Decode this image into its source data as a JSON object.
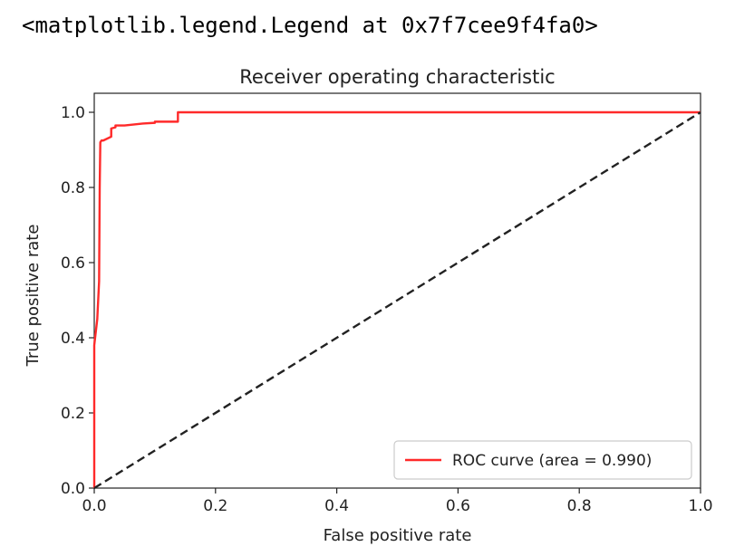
{
  "output": {
    "repr_text": "<matplotlib.legend.Legend at 0x7f7cee9f4fa0>"
  },
  "chart_data": {
    "type": "line",
    "title": "Receiver operating characteristic",
    "xlabel": "False positive rate",
    "ylabel": "True positive rate",
    "xlim": [
      0.0,
      1.0
    ],
    "ylim": [
      0.0,
      1.0
    ],
    "xticks": [
      0.0,
      0.2,
      0.4,
      0.6,
      0.8,
      1.0
    ],
    "yticks": [
      0.0,
      0.2,
      0.4,
      0.6,
      0.8,
      1.0
    ],
    "tick_labels_x": [
      "0.0",
      "0.2",
      "0.4",
      "0.6",
      "0.8",
      "1.0"
    ],
    "tick_labels_y": [
      "0.0",
      "0.2",
      "0.4",
      "0.6",
      "0.8",
      "1.0"
    ],
    "grid": false,
    "legend_position": "lower-right",
    "series": [
      {
        "name": "ROC curve (area = 0.990)",
        "color": "#ff2a2a",
        "style": "solid",
        "x": [
          0.0,
          0.0,
          0.005,
          0.008,
          0.009,
          0.01,
          0.012,
          0.015,
          0.028,
          0.028,
          0.035,
          0.035,
          0.05,
          0.08,
          0.1,
          0.1,
          0.11,
          0.138,
          0.138,
          0.2,
          1.0
        ],
        "y": [
          0.0,
          0.38,
          0.45,
          0.55,
          0.8,
          0.92,
          0.925,
          0.925,
          0.935,
          0.957,
          0.96,
          0.965,
          0.965,
          0.97,
          0.972,
          0.975,
          0.975,
          0.975,
          1.0,
          1.0,
          1.0
        ]
      },
      {
        "name": "",
        "color": "#222222",
        "style": "dashed",
        "x": [
          0.0,
          1.0
        ],
        "y": [
          0.0,
          1.0
        ]
      }
    ]
  }
}
